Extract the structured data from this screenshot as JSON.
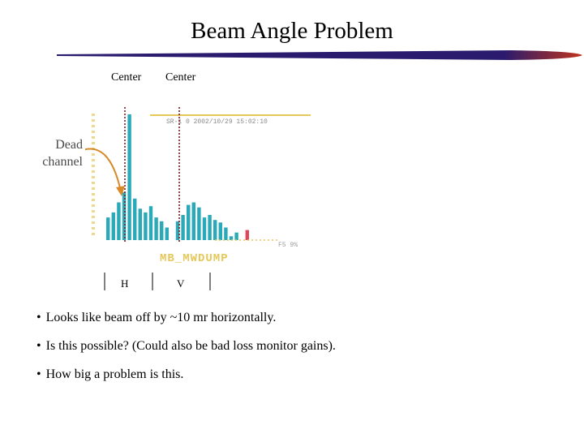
{
  "slide": {
    "title": "Beam Angle Problem",
    "center_labels": [
      "Center",
      "Center"
    ],
    "dead_channel_label": "Dead channel",
    "bullets": [
      "Looks like beam off by ~10 mr horizontally.",
      "Is this possible? (Could also be bad loss monitor gains).",
      "How big a problem is this."
    ],
    "hv_labels": [
      "H",
      "V"
    ]
  },
  "plot": {
    "header_text": "SR-1   0 2002/10/29 15:02:10",
    "bottom_right_text": "F5  9%",
    "display_name": "MB_MWDUMP",
    "colors": {
      "bars": "#2aa9b8",
      "highlight_bar": "#e0485a",
      "axis": "#e6c85a",
      "center_line": "#7a1c1c",
      "arrow": "#d88a2a",
      "title_bar": "#2a1b6e",
      "title_bar_tip": "#c0341c"
    },
    "bars_relative": [
      0.18,
      0.22,
      0.3,
      0.38,
      1.0,
      0.33,
      0.25,
      0.22,
      0.27,
      0.18,
      0.15,
      0.1,
      0.0,
      0.15,
      0.2,
      0.28,
      0.3,
      0.26,
      0.18,
      0.2,
      0.16,
      0.14,
      0.1,
      0.03,
      0.06,
      0.0,
      0.08
    ]
  }
}
